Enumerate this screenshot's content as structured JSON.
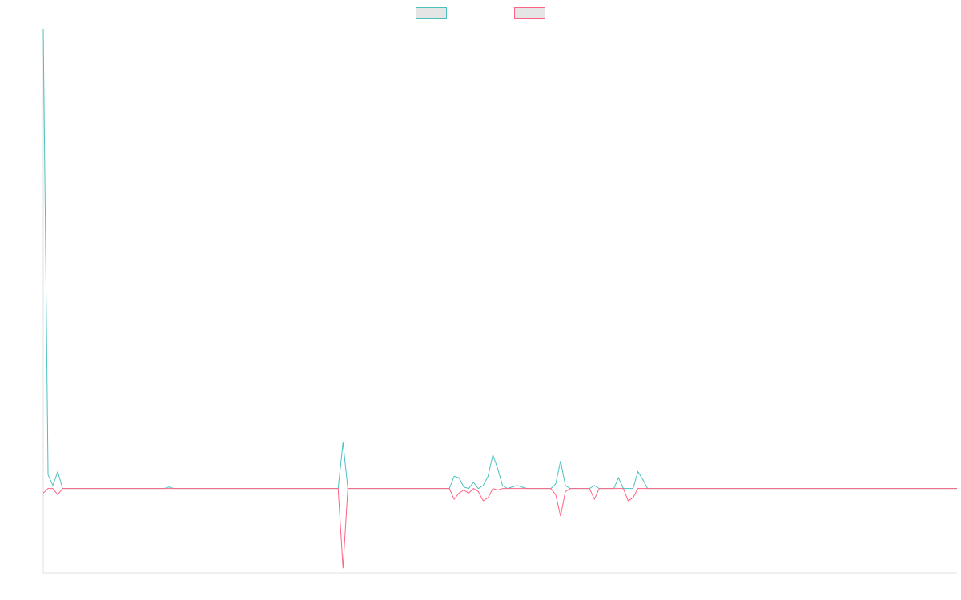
{
  "chart_data": {
    "type": "line",
    "title": "",
    "xlabel": "",
    "ylabel": "",
    "ylim": [
      -55,
      300
    ],
    "grid": false,
    "legend_position": "top-center",
    "x": [
      0,
      1,
      2,
      3,
      4,
      5,
      6,
      7,
      8,
      9,
      10,
      11,
      12,
      13,
      14,
      15,
      16,
      17,
      18,
      19,
      20,
      21,
      22,
      23,
      24,
      25,
      26,
      27,
      28,
      29,
      30,
      31,
      32,
      33,
      34,
      35,
      36,
      37,
      38,
      39,
      40,
      41,
      42,
      43,
      44,
      45,
      46,
      47,
      48,
      49,
      50,
      51,
      52,
      53,
      54,
      55,
      56,
      57,
      58,
      59,
      60,
      61,
      62,
      63,
      64,
      65,
      66,
      67,
      68,
      69,
      70,
      71,
      72,
      73,
      74,
      75,
      76,
      77,
      78,
      79,
      80,
      81,
      82,
      83,
      84,
      85,
      86,
      87,
      88,
      89,
      90,
      91,
      92,
      93,
      94,
      95,
      96,
      97,
      98,
      99,
      100,
      101,
      102,
      103,
      104,
      105,
      106,
      107,
      108,
      109,
      110,
      111,
      112,
      113,
      114,
      115,
      116,
      117,
      118,
      119,
      120,
      121,
      122,
      123,
      124,
      125,
      126,
      127,
      128,
      129,
      130,
      131,
      132,
      133,
      134,
      135,
      136,
      137,
      138,
      139,
      140,
      141,
      142,
      143,
      144,
      145,
      146,
      147,
      148,
      149,
      150,
      151,
      152,
      153,
      154,
      155,
      156,
      157,
      158,
      159,
      160,
      161,
      162,
      163,
      164,
      165,
      166,
      167,
      168,
      169,
      170,
      171,
      172,
      173,
      174,
      175,
      176,
      177,
      178,
      179,
      180,
      181,
      182,
      183,
      184,
      185,
      186,
      187,
      188,
      189
    ],
    "series": [
      {
        "color": "#4bc0c0",
        "values": [
          300,
          9,
          2,
          11,
          0,
          0,
          0,
          0,
          0,
          0,
          0,
          0,
          0,
          0,
          0,
          0,
          0,
          0,
          0,
          0,
          0,
          0,
          0,
          0,
          0,
          0,
          1,
          0,
          0,
          0,
          0,
          0,
          0,
          0,
          0,
          0,
          0,
          0,
          0,
          0,
          0,
          0,
          0,
          0,
          0,
          0,
          0,
          0,
          0,
          0,
          0,
          0,
          0,
          0,
          0,
          0,
          0,
          0,
          0,
          0,
          0,
          0,
          30,
          0,
          0,
          0,
          0,
          0,
          0,
          0,
          0,
          0,
          0,
          0,
          0,
          0,
          0,
          0,
          0,
          0,
          0,
          0,
          0,
          0,
          0,
          8,
          7,
          1,
          0,
          4,
          0,
          2,
          8,
          22,
          13,
          2,
          0,
          1,
          2,
          1,
          0,
          0,
          0,
          0,
          0,
          0,
          3,
          18,
          2,
          0,
          0,
          0,
          0,
          0,
          2,
          0,
          0,
          0,
          0,
          7,
          0,
          0,
          0,
          11,
          6,
          0,
          0,
          0,
          0,
          0,
          0,
          0,
          0,
          0,
          0,
          0,
          0,
          0,
          0,
          0,
          0,
          0,
          0,
          0,
          0,
          0,
          0,
          0,
          0,
          0,
          0,
          0,
          0,
          0,
          0,
          0,
          0,
          0,
          0,
          0,
          0,
          0,
          0,
          0,
          0,
          0,
          0,
          0,
          0,
          0,
          0,
          0,
          0,
          0,
          0,
          0,
          0,
          0,
          0,
          0,
          0,
          0,
          0,
          0,
          0,
          0,
          0,
          0,
          0,
          0
        ]
      },
      {
        "color": "#ff6384",
        "values": [
          -3,
          0,
          0,
          -4,
          0,
          0,
          0,
          0,
          0,
          0,
          0,
          0,
          0,
          0,
          0,
          0,
          0,
          0,
          0,
          0,
          0,
          0,
          0,
          0,
          0,
          0,
          0,
          0,
          0,
          0,
          0,
          0,
          0,
          0,
          0,
          0,
          0,
          0,
          0,
          0,
          0,
          0,
          0,
          0,
          0,
          0,
          0,
          0,
          0,
          0,
          0,
          0,
          0,
          0,
          0,
          0,
          0,
          0,
          0,
          0,
          0,
          0,
          -52,
          0,
          0,
          0,
          0,
          0,
          0,
          0,
          0,
          0,
          0,
          0,
          0,
          0,
          0,
          0,
          0,
          0,
          0,
          0,
          0,
          0,
          0,
          -7,
          -3,
          -1,
          -3,
          0,
          -2,
          -8,
          -6,
          0,
          -1,
          0,
          0,
          0,
          0,
          0,
          0,
          0,
          0,
          0,
          0,
          0,
          -4,
          -18,
          -2,
          0,
          0,
          0,
          0,
          0,
          -7,
          0,
          0,
          0,
          0,
          0,
          0,
          -8,
          -6,
          0,
          0,
          0,
          0,
          0,
          0,
          0,
          0,
          0,
          0,
          0,
          0,
          0,
          0,
          0,
          0,
          0,
          0,
          0,
          0,
          0,
          0,
          0,
          0,
          0,
          0,
          0,
          0,
          0,
          0,
          0,
          0,
          0,
          0,
          0,
          0,
          0,
          0,
          0,
          0,
          0,
          0,
          0,
          0,
          0,
          0,
          0,
          0,
          0,
          0,
          0,
          0,
          0,
          0,
          0,
          0,
          0,
          0,
          0,
          0,
          0,
          0,
          0,
          0,
          0,
          0,
          0
        ]
      }
    ]
  }
}
